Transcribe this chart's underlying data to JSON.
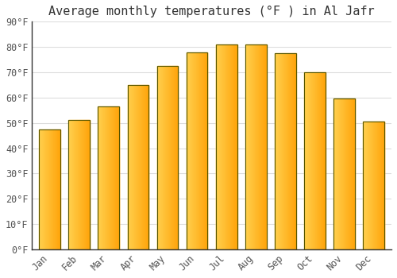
{
  "title": "Average monthly temperatures (°F ) in Al Jafr",
  "months": [
    "Jan",
    "Feb",
    "Mar",
    "Apr",
    "May",
    "Jun",
    "Jul",
    "Aug",
    "Sep",
    "Oct",
    "Nov",
    "Dec"
  ],
  "values": [
    47.5,
    51.0,
    56.5,
    65.0,
    72.5,
    78.0,
    81.0,
    81.0,
    77.5,
    70.0,
    59.5,
    50.5
  ],
  "bar_color_left": "#FFD050",
  "bar_color_right": "#FFA500",
  "bar_edge_color": "#555500",
  "background_color": "#FFFFFF",
  "grid_color": "#DDDDDD",
  "ylim": [
    0,
    90
  ],
  "ytick_step": 10,
  "title_fontsize": 11,
  "tick_fontsize": 8.5,
  "font_family": "monospace",
  "bar_width": 0.72
}
